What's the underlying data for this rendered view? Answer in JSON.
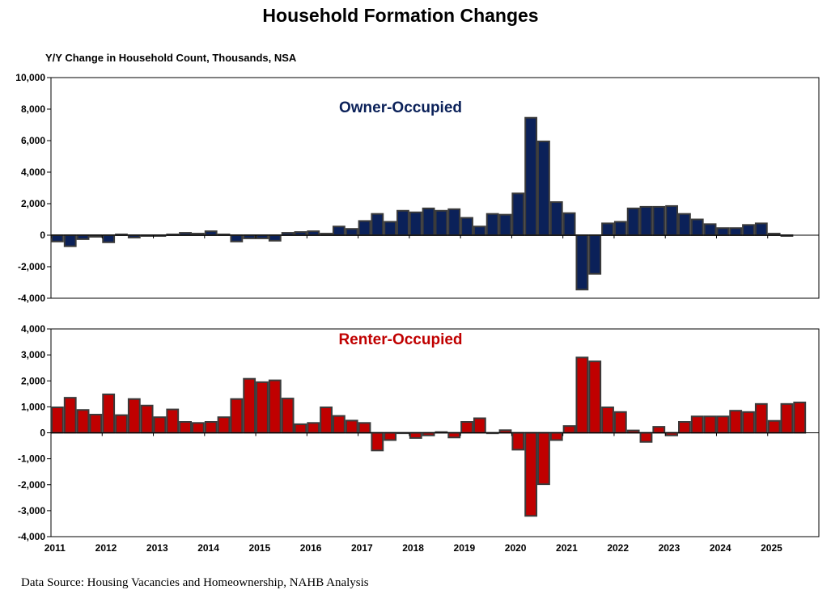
{
  "title": "Household Formation Changes",
  "y_axis_label": "Y/Y Change in Household Count, Thousands, NSA",
  "source": "Data Source: Housing Vacancies and Homeownership, NAHB Analysis",
  "colors": {
    "owner": "#0b2159",
    "renter": "#c00000",
    "bar_outline": "#3a3a3a",
    "owner_label": "#0b2159",
    "renter_label": "#c00000"
  },
  "chart_data": [
    {
      "type": "bar",
      "title": "Owner-Occupied",
      "ylabel": "Y/Y Change in Household Count, Thousands, NSA",
      "ylim": [
        -4000,
        10000
      ],
      "yticks": [
        -4000,
        -2000,
        0,
        2000,
        4000,
        6000,
        8000,
        10000
      ],
      "ytick_labels": [
        "-4,000",
        "-2,000",
        "0",
        "2,000",
        "4,000",
        "6,000",
        "8,000",
        "10,000"
      ],
      "grid": false,
      "x_start": "2011 Q1",
      "frequency": "quarterly",
      "values": [
        -400,
        -700,
        -250,
        -100,
        -450,
        50,
        -150,
        -50,
        -50,
        50,
        150,
        100,
        250,
        50,
        -400,
        -200,
        -200,
        -350,
        150,
        200,
        250,
        100,
        550,
        400,
        900,
        1350,
        850,
        1550,
        1450,
        1700,
        1550,
        1650,
        1100,
        550,
        1350,
        1300,
        2650,
        7450,
        5950,
        2100,
        1400,
        -3450,
        -2450,
        750,
        850,
        1700,
        1800,
        1800,
        1850,
        1350,
        1000,
        700,
        450,
        450,
        650,
        750,
        100,
        -50
      ]
    },
    {
      "type": "bar",
      "title": "Renter-Occupied",
      "ylim": [
        -4000,
        4000
      ],
      "yticks": [
        -4000,
        -3000,
        -2000,
        -1000,
        0,
        1000,
        2000,
        3000,
        4000
      ],
      "ytick_labels": [
        "-4,000",
        "-3,000",
        "-2,000",
        "-1,000",
        "0",
        "1,000",
        "2,000",
        "3,000",
        "4,000"
      ],
      "grid": false,
      "x_start": "2011 Q1",
      "frequency": "quarterly",
      "x_tick_labels": [
        "2011",
        "2012",
        "2013",
        "2014",
        "2015",
        "2016",
        "2017",
        "2018",
        "2019",
        "2020",
        "2021",
        "2022",
        "2023",
        "2024",
        "2025"
      ],
      "values": [
        980,
        1350,
        880,
        700,
        1480,
        680,
        1300,
        1050,
        600,
        900,
        420,
        380,
        420,
        600,
        1300,
        2080,
        1950,
        2020,
        1320,
        330,
        380,
        980,
        650,
        470,
        380,
        -680,
        -280,
        0,
        -200,
        -100,
        30,
        -180,
        420,
        560,
        -20,
        100,
        -650,
        -3200,
        -1980,
        -280,
        260,
        2900,
        2750,
        980,
        800,
        90,
        -350,
        230,
        -100,
        420,
        630,
        630,
        630,
        850,
        800,
        1110,
        460,
        1110,
        1170
      ]
    }
  ]
}
